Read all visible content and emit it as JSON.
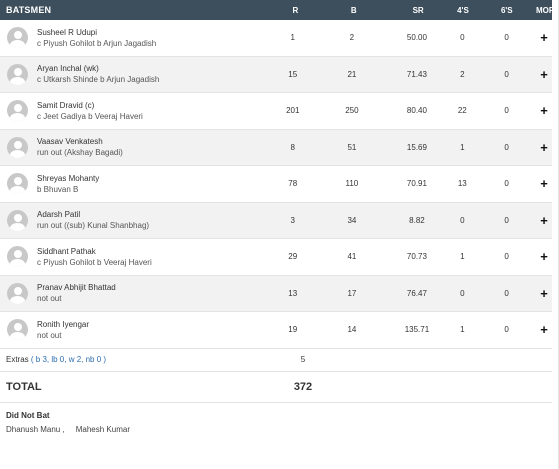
{
  "header": {
    "title": "BATSMEN",
    "cols": [
      "R",
      "B",
      "SR",
      "4'S",
      "6'S",
      "MORE"
    ]
  },
  "batsmen": [
    {
      "name": "Susheel R Udupi",
      "dismissal": "c Piyush Gohilot b Arjun Jagadish",
      "r": "1",
      "b": "2",
      "sr": "50.00",
      "fours": "0",
      "sixes": "0"
    },
    {
      "name": "Aryan Inchal (wk)",
      "dismissal": "c Utkarsh Shinde b Arjun Jagadish",
      "r": "15",
      "b": "21",
      "sr": "71.43",
      "fours": "2",
      "sixes": "0"
    },
    {
      "name": "Samit Dravid (c)",
      "dismissal": "c Jeet Gadiya b Veeraj Haveri",
      "r": "201",
      "b": "250",
      "sr": "80.40",
      "fours": "22",
      "sixes": "0"
    },
    {
      "name": "Vaasav Venkatesh",
      "dismissal": "run out (Akshay Bagadi)",
      "r": "8",
      "b": "51",
      "sr": "15.69",
      "fours": "1",
      "sixes": "0"
    },
    {
      "name": "Shreyas Mohanty",
      "dismissal": "b Bhuvan B",
      "r": "78",
      "b": "110",
      "sr": "70.91",
      "fours": "13",
      "sixes": "0"
    },
    {
      "name": "Adarsh Patil",
      "dismissal": "run out ((sub) Kunal Shanbhag)",
      "r": "3",
      "b": "34",
      "sr": "8.82",
      "fours": "0",
      "sixes": "0"
    },
    {
      "name": "Siddhant Pathak",
      "dismissal": "c Piyush Gohilot b Veeraj Haveri",
      "r": "29",
      "b": "41",
      "sr": "70.73",
      "fours": "1",
      "sixes": "0"
    },
    {
      "name": "Pranav Abhijit Bhattad",
      "dismissal": "not out",
      "r": "13",
      "b": "17",
      "sr": "76.47",
      "fours": "0",
      "sixes": "0"
    },
    {
      "name": "Ronith Iyengar",
      "dismissal": "not out",
      "r": "19",
      "b": "14",
      "sr": "135.71",
      "fours": "1",
      "sixes": "0"
    }
  ],
  "more_symbol": "+",
  "extras": {
    "label": "Extras",
    "detail": "( b 3, lb 0, w 2, nb 0 )",
    "value": "5"
  },
  "total": {
    "label": "TOTAL",
    "value": "372"
  },
  "did_not_bat": {
    "title": "Did Not Bat",
    "players": [
      "Dhanush Manu",
      "Mahesh Kumar"
    ]
  },
  "colors": {
    "header_bg": "#3d4f5c",
    "extras_link": "#2a6db0",
    "alt_row": "#f2f2f2"
  },
  "icons": {
    "avatar": "avatar-placeholder-icon",
    "more": "plus-icon"
  }
}
